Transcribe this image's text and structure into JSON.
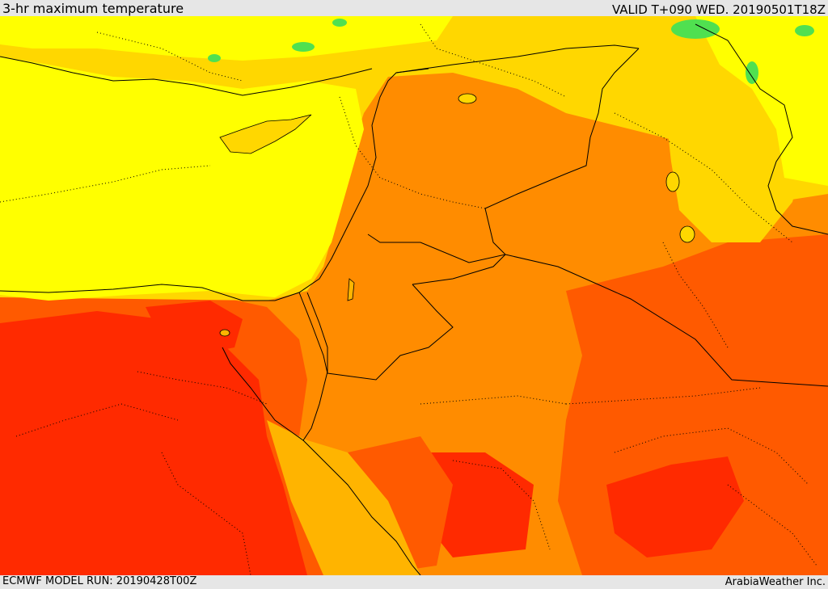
{
  "header": {
    "title": "3-hr maximum temperature",
    "valid_time": "VALID T+090 WED. 20190501T18Z"
  },
  "footer": {
    "model_run": "ECMWF MODEL RUN: 20190428T00Z",
    "credit": "ArabiaWeather Inc."
  },
  "colors": {
    "yellow": "#ffff00",
    "gold": "#ffd700",
    "amber": "#ffb400",
    "orange": "#ff8c00",
    "dark_orange": "#ff5a00",
    "red": "#ff2a00",
    "green": "#50e050",
    "border": "#000000"
  }
}
